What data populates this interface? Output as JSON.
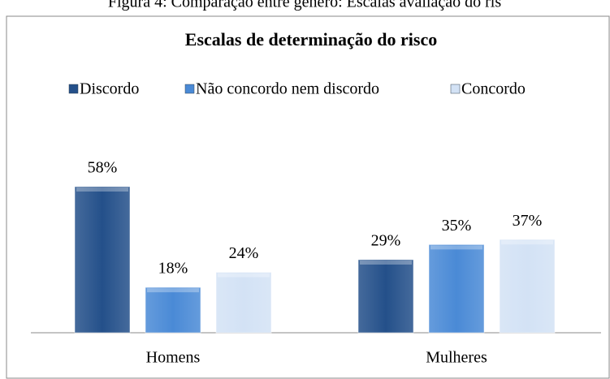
{
  "caption": "Figura 4: Comparação entre género: Escalas avaliação do ris",
  "chart_data": {
    "type": "bar",
    "title": "Escalas de determinação do risco",
    "categories": [
      "Homens",
      "Mulheres"
    ],
    "series": [
      {
        "name": "Discordo",
        "color": "#24508a",
        "values": [
          58,
          29
        ],
        "value_labels": [
          "58%",
          "29%"
        ]
      },
      {
        "name": "Não concordo nem discordo",
        "color": "#4a8ad6",
        "values": [
          18,
          35
        ],
        "value_labels": [
          "18%",
          "35%"
        ]
      },
      {
        "name": "Concordo",
        "color": "#d3e2f5",
        "values": [
          24,
          37
        ],
        "value_labels": [
          "24%",
          "37%"
        ]
      }
    ]
  }
}
